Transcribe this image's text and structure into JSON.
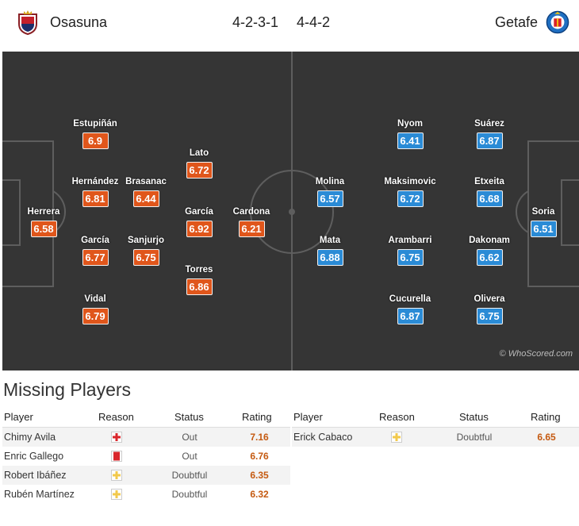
{
  "header": {
    "home_team": "Osasuna",
    "home_formation": "4-2-3-1",
    "away_formation": "4-4-2",
    "away_team": "Getafe"
  },
  "colors": {
    "home_rating": "#e0561b",
    "away_rating": "#2a8bd6",
    "pitch": "#353535",
    "missing_rating": "#c55a11"
  },
  "home_players": [
    {
      "name": "Herrera",
      "rating": "6.58"
    },
    {
      "name": "Estupiñán",
      "rating": "6.9"
    },
    {
      "name": "Hernández",
      "rating": "6.81"
    },
    {
      "name": "García",
      "rating": "6.77"
    },
    {
      "name": "Vidal",
      "rating": "6.79"
    },
    {
      "name": "Brasanac",
      "rating": "6.44"
    },
    {
      "name": "Sanjurjo",
      "rating": "6.75"
    },
    {
      "name": "Lato",
      "rating": "6.72"
    },
    {
      "name": "García",
      "rating": "6.92"
    },
    {
      "name": "Torres",
      "rating": "6.86"
    },
    {
      "name": "Cardona",
      "rating": "6.21"
    }
  ],
  "away_players": [
    {
      "name": "Molina",
      "rating": "6.57"
    },
    {
      "name": "Mata",
      "rating": "6.88"
    },
    {
      "name": "Nyom",
      "rating": "6.41"
    },
    {
      "name": "Maksimovic",
      "rating": "6.72"
    },
    {
      "name": "Arambarri",
      "rating": "6.75"
    },
    {
      "name": "Cucurella",
      "rating": "6.87"
    },
    {
      "name": "Suárez",
      "rating": "6.87"
    },
    {
      "name": "Etxeita",
      "rating": "6.68"
    },
    {
      "name": "Dakonam",
      "rating": "6.62"
    },
    {
      "name": "Olivera",
      "rating": "6.75"
    },
    {
      "name": "Soria",
      "rating": "6.51"
    }
  ],
  "copyright": "© WhoScored.com",
  "missing": {
    "title": "Missing Players",
    "columns": {
      "player": "Player",
      "reason": "Reason",
      "status": "Status",
      "rating": "Rating"
    },
    "home": [
      {
        "player": "Chimy Avila",
        "reason_icon": "injury-cross-icon",
        "status": "Out",
        "rating": "7.16"
      },
      {
        "player": "Enric Gallego",
        "reason_icon": "red-card-icon",
        "status": "Out",
        "rating": "6.76"
      },
      {
        "player": "Robert Ibáñez",
        "reason_icon": "doubtful-cross-icon",
        "status": "Doubtful",
        "rating": "6.35"
      },
      {
        "player": "Rubén Martínez",
        "reason_icon": "doubtful-cross-icon",
        "status": "Doubtful",
        "rating": "6.32"
      }
    ],
    "away": [
      {
        "player": "Erick Cabaco",
        "reason_icon": "doubtful-cross-icon",
        "status": "Doubtful",
        "rating": "6.65"
      }
    ]
  }
}
